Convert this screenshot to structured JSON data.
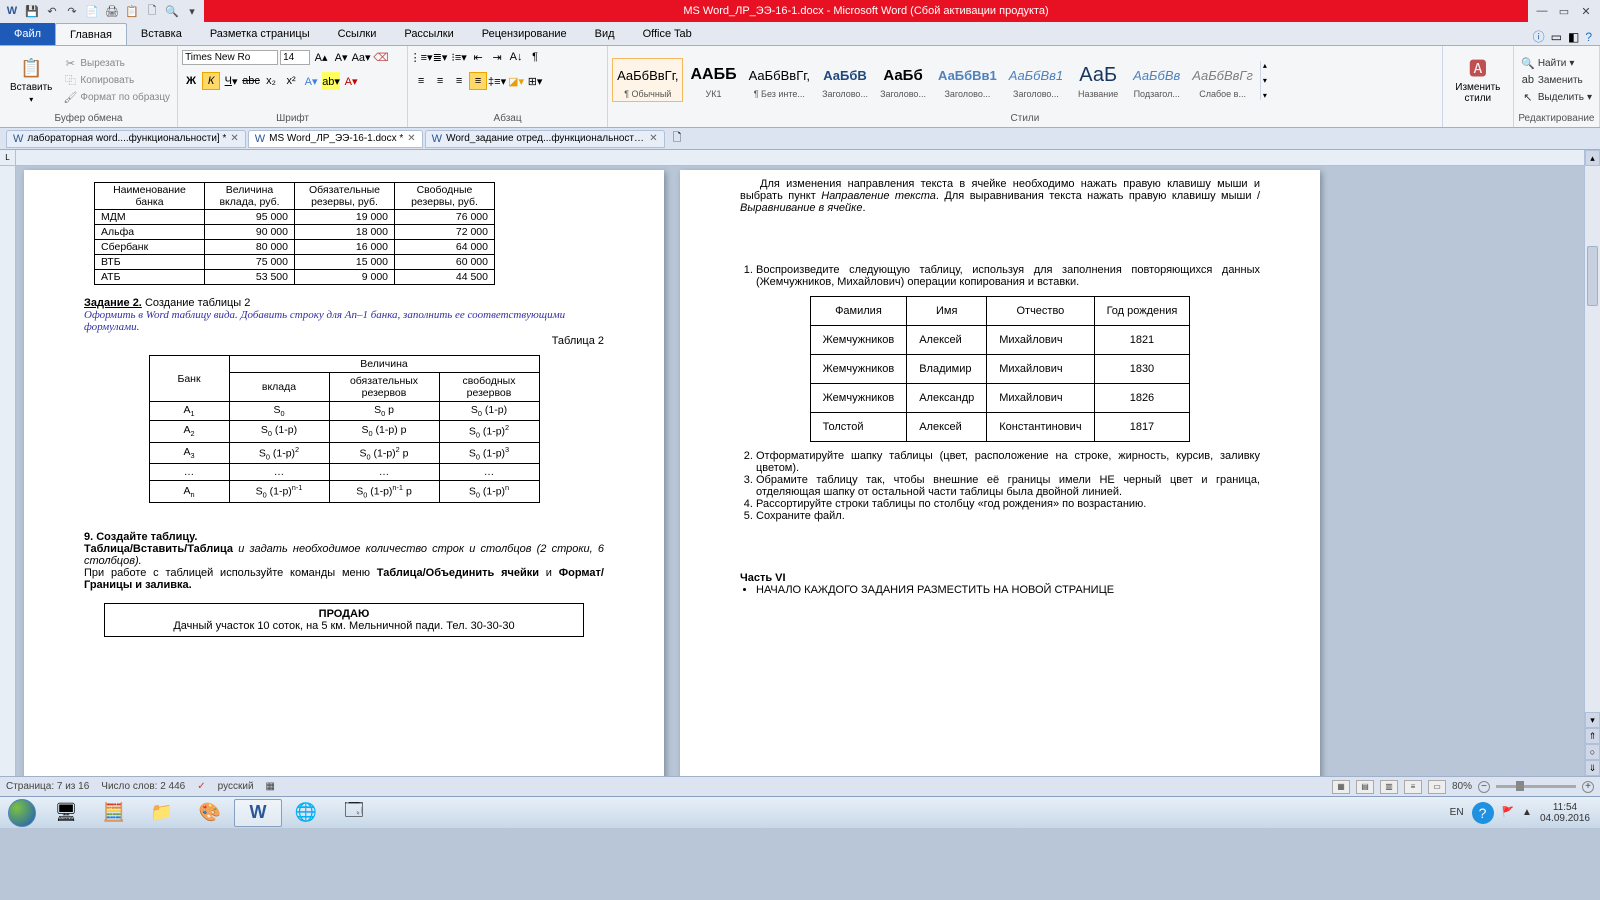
{
  "titlebar": {
    "title": "MS Word_ЛР_ЭЭ-16-1.docx - Microsoft Word (Сбой активации продукта)"
  },
  "tabs": {
    "file": "Файл",
    "home": "Главная",
    "insert": "Вставка",
    "layout": "Разметка страницы",
    "refs": "Ссылки",
    "mail": "Рассылки",
    "review": "Рецензирование",
    "view": "Вид",
    "office": "Office Tab"
  },
  "ribbon": {
    "paste": "Вставить",
    "cut": "Вырезать",
    "copy": "Копировать",
    "fmtpainter": "Формат по образцу",
    "clipboard": "Буфер обмена",
    "font_name": "Times New Ro",
    "font_size": "14",
    "font_group": "Шрифт",
    "para_group": "Абзац",
    "styles_group": "Стили",
    "style_change": "Изменить стили",
    "find": "Найти",
    "replace": "Заменить",
    "select": "Выделить",
    "edit_group": "Редактирование",
    "styles": [
      {
        "preview": "АаБбВвГг,",
        "name": "¶ Обычный"
      },
      {
        "preview": "ААББ",
        "name": "УК1",
        "bold": true,
        "size": "16px"
      },
      {
        "preview": "АаБбВвГг,",
        "name": "¶ Без инте..."
      },
      {
        "preview": "АаБбВ",
        "name": "Заголово...",
        "bold": true,
        "color": "#1f497d"
      },
      {
        "preview": "АаБб",
        "name": "Заголово...",
        "bold": true,
        "size": "15px"
      },
      {
        "preview": "АаБбВв1",
        "name": "Заголово...",
        "color": "#4f81bd",
        "bold": true
      },
      {
        "preview": "АаБбВв1",
        "name": "Заголово...",
        "color": "#4f81bd",
        "italic": true
      },
      {
        "preview": "АаБ",
        "name": "Название",
        "size": "20px",
        "color": "#17365d"
      },
      {
        "preview": "АаБбВв",
        "name": "Подзагол...",
        "color": "#4f81bd",
        "italic": true
      },
      {
        "preview": "АаБбВвГг",
        "name": "Слабое в...",
        "color": "#808080",
        "italic": true
      }
    ]
  },
  "doctabs": [
    {
      "name": "лабораторная word....функциональности] *"
    },
    {
      "name": "MS Word_ЛР_ЭЭ-16-1.docx *",
      "active": true
    },
    {
      "name": "Word_задание отред...функциональности] *"
    }
  ],
  "page1": {
    "table1": {
      "headers": [
        "Наименование банка",
        "Величина вклада, руб.",
        "Обязательные резервы, руб.",
        "Свободные резервы, руб."
      ],
      "rows": [
        [
          "МДМ",
          "95 000",
          "19 000",
          "76 000"
        ],
        [
          "Альфа",
          "90 000",
          "18 000",
          "72 000"
        ],
        [
          "Сбербанк",
          "80 000",
          "16 000",
          "64 000"
        ],
        [
          "ВТБ",
          "75 000",
          "15 000",
          "60 000"
        ],
        [
          "АТБ",
          "53 500",
          "9 000",
          "44 500"
        ]
      ]
    },
    "task2_label": "Задание 2.",
    "task2_text": "Создание таблицы 2",
    "task2_body": "Оформить в Word таблицу вида. Добавить строку для Аn–1 банка, заполнить ее соответствующими формулами.",
    "table2_caption": "Таблица 2",
    "table2": {
      "h_bank": "Банк",
      "h_vel": "Величина",
      "h_vk": "вклада",
      "h_ob": "обязательных резервов",
      "h_sv": "свободных резервов"
    },
    "task9": "9. Создайте таблицу.",
    "task9_p1a": "Таблица/Вставить/Таблица",
    "task9_p1b": " и задать необходимое количество строк и столбцов (2 строки, 6 столбцов).",
    "task9_p2a": " При работе  с таблицей используйте команды меню ",
    "task9_p2b": "Таблица/Объединить ячейки",
    "task9_p2c": " и ",
    "task9_p2d": "Формат/Границы и заливка.",
    "sell_title": "ПРОДАЮ",
    "sell_text": "Дачный участок 10 соток, на 5 км. Мельничной пади. Тел. 30-30-30"
  },
  "page2": {
    "para1": "Для изменения направления текста в ячейке необходимо нажать правую клавишу мыши и выбрать пункт ",
    "para1i": "Направление текста",
    "para1b": ". Для выравнивания текста нажать правую клавишу мыши / ",
    "para1i2": "Выравнивание в ячейке",
    "list1": "Воспроизведите следующую таблицу, используя для  заполнения повторяющихся данных  (Жемчужников, Михайлович) операции копирования и вставки.",
    "table3": {
      "headers": [
        "Фамилия",
        "Имя",
        "Отчество",
        "Год рождения"
      ],
      "rows": [
        [
          "Жемчужников",
          "Алексей",
          "Михайлович",
          "1821"
        ],
        [
          "Жемчужников",
          "Владимир",
          "Михайлович",
          "1830"
        ],
        [
          "Жемчужников",
          "Александр",
          "Михайлович",
          "1826"
        ],
        [
          "Толстой",
          "Алексей",
          "Константинович",
          "1817"
        ]
      ]
    },
    "list2": "Отформатируйте шапку таблицы (цвет, расположение на строке, жирность, курсив, заливку цветом).",
    "list3": "Обрамите таблицу так, чтобы внешние её границы имели НЕ черный цвет и граница, отделяющая шапку от остальной части таблицы была двойной линией.",
    "list4": "Рассортируйте строки таблицы по столбцу «год рождения» по возрастанию.",
    "list5": "Сохраните файл.",
    "part6": "Часть VI",
    "part6_bullet": "НАЧАЛО КАЖДОГО ЗАДАНИЯ РАЗМЕСТИТЬ НА НОВОЙ СТРАНИЦЕ"
  },
  "status": {
    "page": "Страница: 7 из 16",
    "words": "Число слов: 2 446",
    "lang": "русский",
    "zoom": "80%"
  },
  "tray": {
    "lang": "EN",
    "time": "11:54",
    "date": "04.09.2016"
  }
}
